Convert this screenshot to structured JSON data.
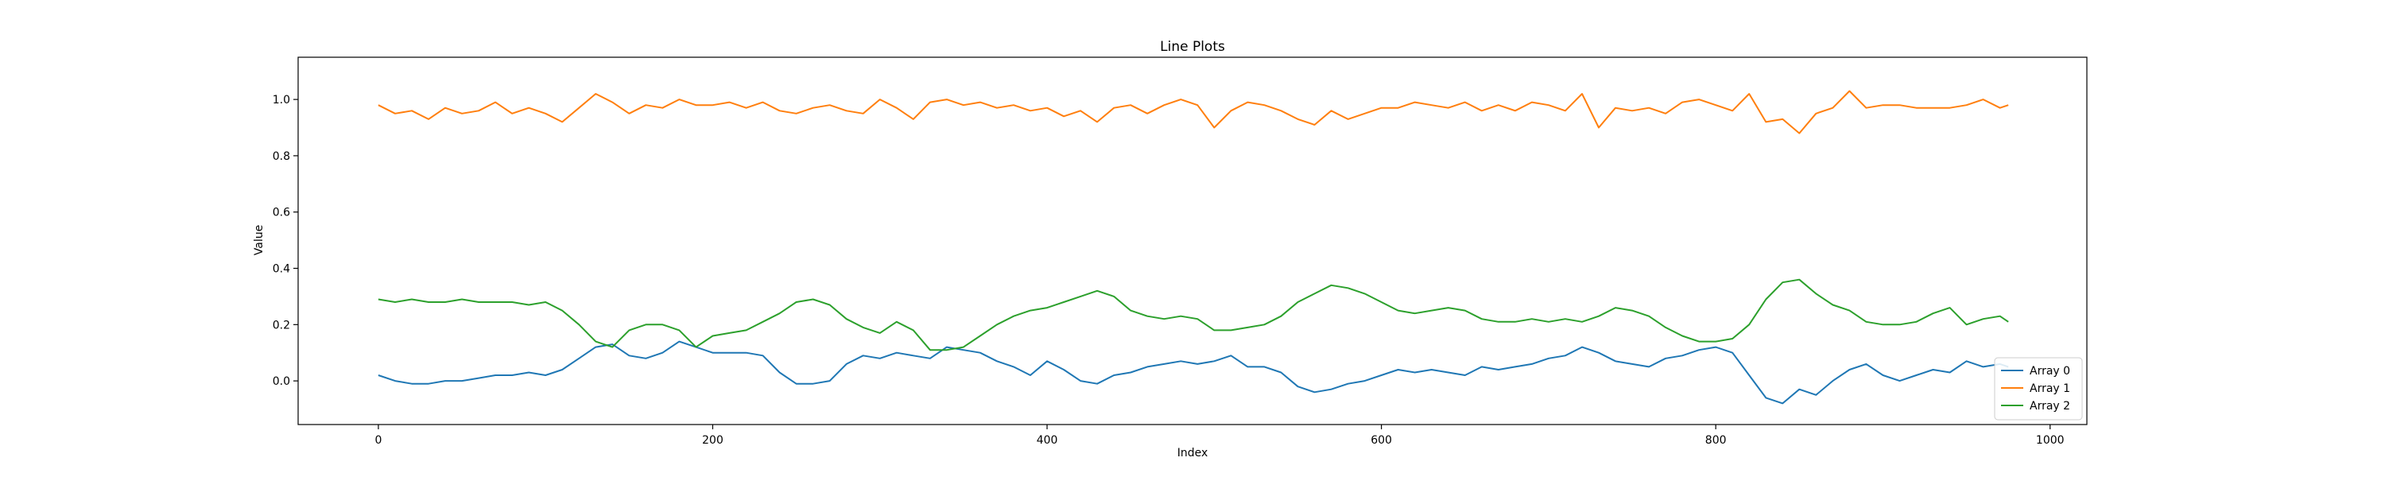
{
  "chart_data": {
    "type": "line",
    "title": "Line Plots",
    "xlabel": "Index",
    "ylabel": "Value",
    "xlim": [
      -48,
      1022
    ],
    "ylim": [
      -0.155,
      1.15
    ],
    "x_ticks": [
      0,
      200,
      400,
      600,
      800,
      1000
    ],
    "y_ticks": [
      0.0,
      0.2,
      0.4,
      0.6,
      0.8,
      1.0
    ],
    "x_tick_labels": [
      "0",
      "200",
      "400",
      "600",
      "800",
      "1000"
    ],
    "y_tick_labels": [
      "0.0",
      "0.2",
      "0.4",
      "0.6",
      "0.8",
      "1.0"
    ],
    "grid": false,
    "legend_position": "bottom-right",
    "x": [
      0,
      10,
      20,
      30,
      40,
      50,
      60,
      70,
      80,
      90,
      100,
      110,
      120,
      130,
      140,
      150,
      160,
      170,
      180,
      190,
      200,
      210,
      220,
      230,
      240,
      250,
      260,
      270,
      280,
      290,
      300,
      310,
      320,
      330,
      340,
      350,
      360,
      370,
      380,
      390,
      400,
      410,
      420,
      430,
      440,
      450,
      460,
      470,
      480,
      490,
      500,
      510,
      520,
      530,
      540,
      550,
      560,
      570,
      580,
      590,
      600,
      610,
      620,
      630,
      640,
      650,
      660,
      670,
      680,
      690,
      700,
      710,
      720,
      730,
      740,
      750,
      760,
      770,
      780,
      790,
      800,
      810,
      820,
      830,
      840,
      850,
      860,
      870,
      880,
      890,
      900,
      910,
      920,
      930,
      940,
      950,
      960,
      970,
      975
    ],
    "series": [
      {
        "name": "Array 0",
        "color": "#1f77b4",
        "values": [
          0.02,
          0.0,
          -0.01,
          -0.01,
          0.0,
          0.0,
          0.01,
          0.02,
          0.02,
          0.03,
          0.02,
          0.04,
          0.08,
          0.12,
          0.13,
          0.09,
          0.08,
          0.1,
          0.14,
          0.12,
          0.1,
          0.1,
          0.1,
          0.09,
          0.03,
          -0.01,
          -0.01,
          0.0,
          0.06,
          0.09,
          0.08,
          0.1,
          0.09,
          0.08,
          0.12,
          0.11,
          0.1,
          0.07,
          0.05,
          0.02,
          0.07,
          0.04,
          0.0,
          -0.01,
          0.02,
          0.03,
          0.05,
          0.06,
          0.07,
          0.06,
          0.07,
          0.09,
          0.05,
          0.05,
          0.03,
          -0.02,
          -0.04,
          -0.03,
          -0.01,
          0.0,
          0.02,
          0.04,
          0.03,
          0.04,
          0.03,
          0.02,
          0.05,
          0.04,
          0.05,
          0.06,
          0.08,
          0.09,
          0.12,
          0.1,
          0.07,
          0.06,
          0.05,
          0.08,
          0.09,
          0.11,
          0.12,
          0.1,
          0.02,
          -0.06,
          -0.08,
          -0.03,
          -0.05,
          0.0,
          0.04,
          0.06,
          0.02,
          0.0,
          0.02,
          0.04,
          0.03,
          0.07,
          0.05,
          0.06,
          0.05
        ]
      },
      {
        "name": "Array 1",
        "color": "#ff7f0e",
        "values": [
          0.98,
          0.95,
          0.96,
          0.93,
          0.97,
          0.95,
          0.96,
          0.99,
          0.95,
          0.97,
          0.95,
          0.92,
          0.97,
          1.02,
          0.99,
          0.95,
          0.98,
          0.97,
          1.0,
          0.98,
          0.98,
          0.99,
          0.97,
          0.99,
          0.96,
          0.95,
          0.97,
          0.98,
          0.96,
          0.95,
          1.0,
          0.97,
          0.93,
          0.99,
          1.0,
          0.98,
          0.99,
          0.97,
          0.98,
          0.96,
          0.97,
          0.94,
          0.96,
          0.92,
          0.97,
          0.98,
          0.95,
          0.98,
          1.0,
          0.98,
          0.9,
          0.96,
          0.99,
          0.98,
          0.96,
          0.93,
          0.91,
          0.96,
          0.93,
          0.95,
          0.97,
          0.97,
          0.99,
          0.98,
          0.97,
          0.99,
          0.96,
          0.98,
          0.96,
          0.99,
          0.98,
          0.96,
          1.02,
          0.9,
          0.97,
          0.96,
          0.97,
          0.95,
          0.99,
          1.0,
          0.98,
          0.96,
          1.02,
          0.92,
          0.93,
          0.88,
          0.95,
          0.97,
          1.03,
          0.97,
          0.98,
          0.98,
          0.97,
          0.97,
          0.97,
          0.98,
          1.0,
          0.97,
          0.98
        ]
      },
      {
        "name": "Array 2",
        "color": "#2ca02c",
        "values": [
          0.29,
          0.28,
          0.29,
          0.28,
          0.28,
          0.29,
          0.28,
          0.28,
          0.28,
          0.27,
          0.28,
          0.25,
          0.2,
          0.14,
          0.12,
          0.18,
          0.2,
          0.2,
          0.18,
          0.12,
          0.16,
          0.17,
          0.18,
          0.21,
          0.24,
          0.28,
          0.29,
          0.27,
          0.22,
          0.19,
          0.17,
          0.21,
          0.18,
          0.11,
          0.11,
          0.12,
          0.16,
          0.2,
          0.23,
          0.25,
          0.26,
          0.28,
          0.3,
          0.32,
          0.3,
          0.25,
          0.23,
          0.22,
          0.23,
          0.22,
          0.18,
          0.18,
          0.19,
          0.2,
          0.23,
          0.28,
          0.31,
          0.34,
          0.33,
          0.31,
          0.28,
          0.25,
          0.24,
          0.25,
          0.26,
          0.25,
          0.22,
          0.21,
          0.21,
          0.22,
          0.21,
          0.22,
          0.21,
          0.23,
          0.26,
          0.25,
          0.23,
          0.19,
          0.16,
          0.14,
          0.14,
          0.15,
          0.2,
          0.29,
          0.35,
          0.36,
          0.31,
          0.27,
          0.25,
          0.21,
          0.2,
          0.2,
          0.21,
          0.24,
          0.26,
          0.2,
          0.22,
          0.23,
          0.21
        ]
      }
    ]
  }
}
